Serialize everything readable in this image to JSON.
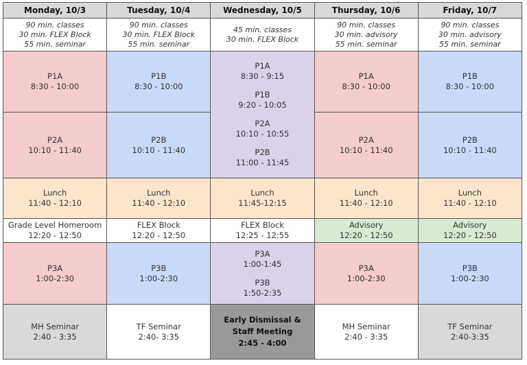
{
  "days": [
    {
      "header": "Monday, 10/3",
      "notes": [
        "90 min. classes",
        "30 min. FLEX Block",
        "55 min. seminar"
      ]
    },
    {
      "header": "Tuesday, 10/4",
      "notes": [
        "90 min. classes",
        "30 min. FLEX Block",
        "55 min. seminar"
      ]
    },
    {
      "header": "Wednesday, 10/5",
      "notes": [
        "45 min. classes",
        "30 min. FLEX Block"
      ]
    },
    {
      "header": "Thursday, 10/6",
      "notes": [
        "90 min. classes",
        "30 min. advisory",
        "55 min. seminar"
      ]
    },
    {
      "header": "Friday, 10/7",
      "notes": [
        "90 min. classes",
        "30 min. advisory",
        "55 min. seminar"
      ]
    }
  ],
  "blocks": {
    "mon": {
      "p1": {
        "name": "P1A",
        "time": "8:30 - 10:00"
      },
      "p2": {
        "name": "P2A",
        "time": "10:10 - 11:40"
      },
      "lunch": {
        "name": "Lunch",
        "time": "11:40 - 12:10"
      },
      "mid": {
        "name": "Grade Level Homeroom",
        "time": "12:20 - 12:50"
      },
      "p3": {
        "name": "P3A",
        "time": "1:00-2:30"
      },
      "seminar": {
        "name": "MH Seminar",
        "time": "2:40 - 3:35"
      }
    },
    "tue": {
      "p1": {
        "name": "P1B",
        "time": "8:30 - 10:00"
      },
      "p2": {
        "name": "P2B",
        "time": "10:10 - 11:40"
      },
      "lunch": {
        "name": "Lunch",
        "time": "11:40 - 12:10"
      },
      "mid": {
        "name": "FLEX Block",
        "time": "12:20 - 12:50"
      },
      "p3": {
        "name": "P3B",
        "time": "1:00-2:30"
      },
      "seminar": {
        "name": "TF Seminar",
        "time": "2:40- 3:35"
      }
    },
    "wed": {
      "a1": {
        "name": "P1A",
        "time": "8:30 - 9:15"
      },
      "b1": {
        "name": "P1B",
        "time": "9:20 - 10:05"
      },
      "a2": {
        "name": "P2A",
        "time": "10:10 - 10:55"
      },
      "b2": {
        "name": "P2B",
        "time": "11:00 - 11:45"
      },
      "lunch": {
        "name": "Lunch",
        "time": "11:45-12:15"
      },
      "mid": {
        "name": "FLEX Block",
        "time": "12:25 - 12:55"
      },
      "a3": {
        "name": "P3A",
        "time": "1:00-1:45"
      },
      "b3": {
        "name": "P3B",
        "time": "1:50-2:35"
      },
      "dismissal": {
        "line1": "Early Dismissal &",
        "line2": "Staff Meeting",
        "time": "2:45 - 4:00"
      }
    },
    "thu": {
      "p1": {
        "name": "P1A",
        "time": "8:30 - 10:00"
      },
      "p2": {
        "name": "P2A",
        "time": "10:10 - 11:40"
      },
      "lunch": {
        "name": "Lunch",
        "time": "11:40 - 12:10"
      },
      "mid": {
        "name": "Advisory",
        "time": "12:20 - 12:50"
      },
      "p3": {
        "name": "P3A",
        "time": "1:00-2:30"
      },
      "seminar": {
        "name": "MH Seminar",
        "time": "2:40 - 3:35"
      }
    },
    "fri": {
      "p1": {
        "name": "P1B",
        "time": "8:30 - 10:00"
      },
      "p2": {
        "name": "P2B",
        "time": "10:10 - 11:40"
      },
      "lunch": {
        "name": "Lunch",
        "time": "11:40 - 12:10"
      },
      "mid": {
        "name": "Advisory",
        "time": "12:20 - 12:50"
      },
      "p3": {
        "name": "P3B",
        "time": "1:00-2:30"
      },
      "seminar": {
        "name": "TF Seminar",
        "time": "2:40-3:35"
      }
    }
  },
  "colors": {
    "a_day": "#f4cccc",
    "b_day": "#c9daf8",
    "wednesday": "#d9d2e9",
    "lunch": "#fce5cd",
    "advisory": "#d9ead3",
    "seminar_grey": "#d9d9d9",
    "dismissal": "#999999"
  }
}
